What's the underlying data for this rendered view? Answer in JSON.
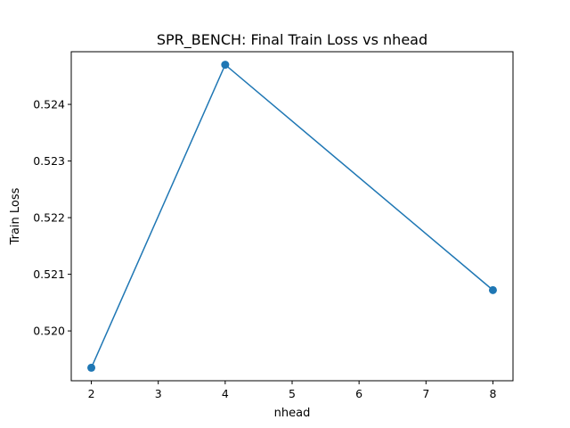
{
  "chart_data": {
    "type": "line",
    "title": "SPR_BENCH: Final Train Loss vs nhead",
    "xlabel": "nhead",
    "ylabel": "Train Loss",
    "x": [
      2,
      4,
      8
    ],
    "series": [
      {
        "values": [
          0.51935,
          0.5247,
          0.52072
        ],
        "color": "#1f77b4",
        "marker": "circle"
      }
    ],
    "xlim": [
      1.7,
      8.3
    ],
    "ylim": [
      0.51912,
      0.52493
    ],
    "xticks": [
      2,
      3,
      4,
      5,
      6,
      7,
      8
    ],
    "xtick_labels": [
      "2",
      "3",
      "4",
      "5",
      "6",
      "7",
      "8"
    ],
    "yticks": [
      0.52,
      0.521,
      0.522,
      0.523,
      0.524
    ],
    "ytick_labels": [
      "0.520",
      "0.521",
      "0.522",
      "0.523",
      "0.524"
    ],
    "grid": false,
    "legend": "none"
  }
}
